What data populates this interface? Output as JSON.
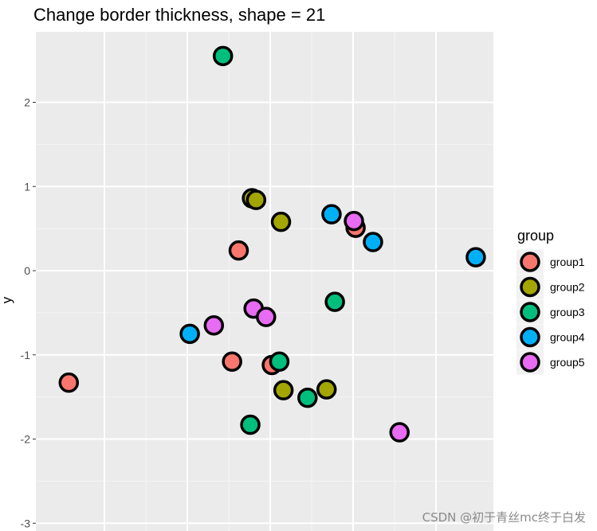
{
  "chart_data": {
    "type": "scatter",
    "title": "Change border thickness, shape = 21",
    "xlabel": "",
    "ylabel": "y",
    "ylim": [
      -3.05,
      2.8
    ],
    "y_ticks": [
      2,
      1,
      0,
      -1,
      -2,
      -3
    ],
    "xlim": [
      -2.5,
      2.55
    ],
    "x_grid_major": [
      -2,
      -1,
      0,
      1,
      2
    ],
    "x_grid_minor": [
      -1.5,
      -0.5,
      0.5,
      1.5
    ],
    "grid": true,
    "legend": {
      "title": "group",
      "position": "right"
    },
    "series": [
      {
        "name": "group1",
        "color": "#F8766D",
        "points": [
          [
            -2.43,
            -1.33
          ],
          [
            -0.38,
            0.24
          ],
          [
            -0.46,
            -1.08
          ],
          [
            0.02,
            -1.12
          ],
          [
            1.03,
            0.51
          ]
        ]
      },
      {
        "name": "group2",
        "color": "#A3A500",
        "points": [
          [
            -0.22,
            0.86
          ],
          [
            -0.17,
            0.84
          ],
          [
            0.13,
            0.58
          ],
          [
            0.16,
            -1.42
          ],
          [
            0.68,
            -1.41
          ]
        ]
      },
      {
        "name": "group3",
        "color": "#00BF7D",
        "points": [
          [
            -0.57,
            2.55
          ],
          [
            -0.24,
            -1.83
          ],
          [
            0.11,
            -1.08
          ],
          [
            0.45,
            -1.51
          ],
          [
            0.78,
            -0.37
          ]
        ]
      },
      {
        "name": "group4",
        "color": "#00B0F6",
        "points": [
          [
            -0.97,
            -0.75
          ],
          [
            0.74,
            0.67
          ],
          [
            1.24,
            0.34
          ],
          [
            2.48,
            0.16
          ]
        ]
      },
      {
        "name": "group5",
        "color": "#E76BF3",
        "points": [
          [
            -0.68,
            -0.65
          ],
          [
            -0.2,
            -0.45
          ],
          [
            -0.05,
            -0.55
          ],
          [
            1.01,
            0.59
          ],
          [
            1.56,
            -1.92
          ]
        ]
      }
    ]
  },
  "watermark": "CSDN @初于青丝mc终于白发"
}
